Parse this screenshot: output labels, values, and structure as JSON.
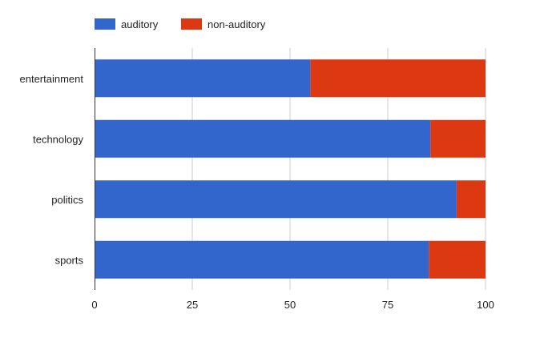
{
  "chart_data": {
    "type": "bar",
    "orientation": "horizontal",
    "stacked": true,
    "categories": [
      "entertainment",
      "technology",
      "politics",
      "sports"
    ],
    "series": [
      {
        "name": "auditory",
        "color": "#3366cc",
        "values": [
          55.2,
          85.9,
          92.6,
          85.5
        ]
      },
      {
        "name": "non-auditory",
        "color": "#dc3912",
        "values": [
          44.8,
          14.1,
          7.4,
          14.5
        ]
      }
    ],
    "xlim": [
      0,
      100
    ],
    "xticks": [
      "0",
      "25",
      "50",
      "75",
      "100"
    ],
    "grid": true,
    "legend_position": "top-left"
  }
}
